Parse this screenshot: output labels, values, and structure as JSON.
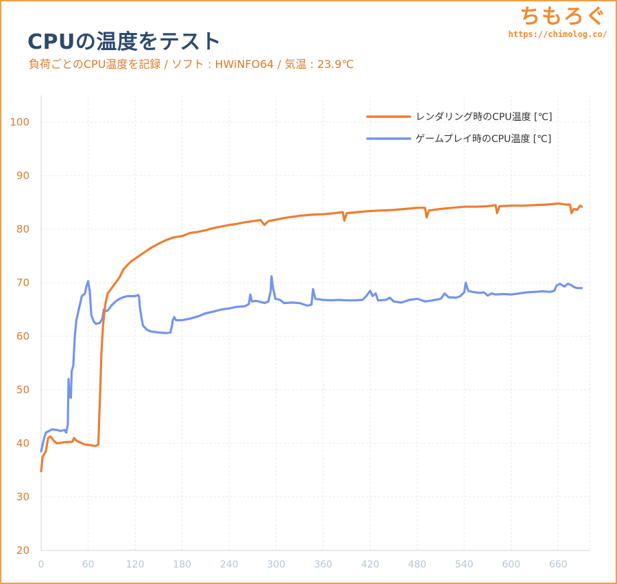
{
  "header": {
    "title": "CPUの温度をテスト",
    "subtitle": "負荷ごとのCPU温度を記録 / ソフト : HWiNFO64 / 気温 : 23.9℃"
  },
  "brand": {
    "name": "ちもろぐ",
    "url": "https://chimolog.co/"
  },
  "colors": {
    "accent": "#f0a040",
    "title": "#2d4a6b",
    "rendering": "#ed7d31",
    "gaming": "#7394ee"
  },
  "chart_data": {
    "type": "line",
    "title": "",
    "xlabel": "",
    "ylabel": "",
    "xlim": [
      0,
      700
    ],
    "ylim": [
      20,
      105
    ],
    "grid": true,
    "legend_position": "top-right",
    "x_ticks": [
      "0",
      "60",
      "120",
      "180",
      "240",
      "300",
      "360",
      "420",
      "480",
      "540",
      "600",
      "660"
    ],
    "y_ticks": [
      "20",
      "30",
      "40",
      "50",
      "60",
      "70",
      "80",
      "90",
      "100"
    ],
    "series": [
      {
        "name": "レンダリング時のCPU温度 [℃]",
        "color": "#ed7d31",
        "points": [
          [
            0,
            34.8
          ],
          [
            2,
            37.5
          ],
          [
            6,
            38.5
          ],
          [
            9,
            41.0
          ],
          [
            12,
            41.3
          ],
          [
            16,
            40.5
          ],
          [
            20,
            40.0
          ],
          [
            30,
            40.2
          ],
          [
            40,
            40.3
          ],
          [
            42,
            41.0
          ],
          [
            45,
            40.5
          ],
          [
            55,
            39.8
          ],
          [
            65,
            39.6
          ],
          [
            70,
            39.5
          ],
          [
            73,
            39.8
          ],
          [
            75,
            48.0
          ],
          [
            77,
            57.0
          ],
          [
            79,
            62.0
          ],
          [
            82,
            66.0
          ],
          [
            85,
            68.0
          ],
          [
            90,
            69.0
          ],
          [
            95,
            70.0
          ],
          [
            100,
            71.0
          ],
          [
            105,
            72.5
          ],
          [
            110,
            73.3
          ],
          [
            115,
            74.0
          ],
          [
            120,
            74.5
          ],
          [
            130,
            75.5
          ],
          [
            140,
            76.5
          ],
          [
            150,
            77.3
          ],
          [
            160,
            78.0
          ],
          [
            170,
            78.5
          ],
          [
            180,
            78.7
          ],
          [
            190,
            79.3
          ],
          [
            200,
            79.5
          ],
          [
            210,
            79.8
          ],
          [
            220,
            80.2
          ],
          [
            230,
            80.5
          ],
          [
            240,
            80.8
          ],
          [
            250,
            81.0
          ],
          [
            260,
            81.3
          ],
          [
            270,
            81.5
          ],
          [
            280,
            81.7
          ],
          [
            285,
            80.8
          ],
          [
            290,
            81.5
          ],
          [
            300,
            81.8
          ],
          [
            315,
            82.2
          ],
          [
            330,
            82.5
          ],
          [
            345,
            82.7
          ],
          [
            360,
            82.8
          ],
          [
            375,
            83.0
          ],
          [
            385,
            83.2
          ],
          [
            387,
            81.6
          ],
          [
            390,
            83.0
          ],
          [
            405,
            83.2
          ],
          [
            420,
            83.4
          ],
          [
            435,
            83.5
          ],
          [
            450,
            83.6
          ],
          [
            465,
            83.8
          ],
          [
            480,
            84.0
          ],
          [
            490,
            84.0
          ],
          [
            492,
            82.2
          ],
          [
            495,
            83.5
          ],
          [
            510,
            83.8
          ],
          [
            525,
            84.0
          ],
          [
            540,
            84.2
          ],
          [
            555,
            84.2
          ],
          [
            570,
            84.3
          ],
          [
            580,
            84.5
          ],
          [
            582,
            83.0
          ],
          [
            585,
            84.3
          ],
          [
            600,
            84.4
          ],
          [
            615,
            84.4
          ],
          [
            630,
            84.5
          ],
          [
            645,
            84.6
          ],
          [
            660,
            84.8
          ],
          [
            670,
            84.6
          ],
          [
            675,
            84.6
          ],
          [
            677,
            83.0
          ],
          [
            680,
            83.8
          ],
          [
            684,
            83.6
          ],
          [
            688,
            84.4
          ],
          [
            690,
            84.2
          ]
        ]
      },
      {
        "name": "ゲームプレイ時のCPU温度 [℃]",
        "color": "#7394ee",
        "points": [
          [
            0,
            38.5
          ],
          [
            3,
            40.5
          ],
          [
            6,
            42.0
          ],
          [
            10,
            42.3
          ],
          [
            14,
            42.6
          ],
          [
            20,
            42.5
          ],
          [
            25,
            42.3
          ],
          [
            30,
            42.5
          ],
          [
            32,
            42.0
          ],
          [
            34,
            43.5
          ],
          [
            35,
            52.0
          ],
          [
            36,
            49.0
          ],
          [
            38,
            48.5
          ],
          [
            39,
            53.5
          ],
          [
            41,
            54.5
          ],
          [
            43,
            60.0
          ],
          [
            45,
            63.0
          ],
          [
            48,
            65.0
          ],
          [
            52,
            67.5
          ],
          [
            56,
            68.0
          ],
          [
            58,
            69.5
          ],
          [
            60,
            70.3
          ],
          [
            62,
            68.5
          ],
          [
            64,
            64.0
          ],
          [
            67,
            62.8
          ],
          [
            70,
            62.3
          ],
          [
            75,
            62.5
          ],
          [
            78,
            63.2
          ],
          [
            80,
            65.0
          ],
          [
            82,
            64.7
          ],
          [
            85,
            64.8
          ],
          [
            90,
            65.8
          ],
          [
            95,
            66.5
          ],
          [
            100,
            67.0
          ],
          [
            105,
            67.3
          ],
          [
            110,
            67.5
          ],
          [
            120,
            67.5
          ],
          [
            124,
            67.7
          ],
          [
            125,
            67.3
          ],
          [
            126,
            65.5
          ],
          [
            128,
            63.5
          ],
          [
            130,
            62.0
          ],
          [
            135,
            61.2
          ],
          [
            140,
            60.9
          ],
          [
            150,
            60.7
          ],
          [
            160,
            60.6
          ],
          [
            165,
            60.7
          ],
          [
            167,
            62.0
          ],
          [
            168,
            63.0
          ],
          [
            170,
            63.6
          ],
          [
            172,
            63.0
          ],
          [
            180,
            63.0
          ],
          [
            190,
            63.3
          ],
          [
            200,
            63.7
          ],
          [
            210,
            64.3
          ],
          [
            220,
            64.6
          ],
          [
            230,
            65.0
          ],
          [
            240,
            65.2
          ],
          [
            250,
            65.5
          ],
          [
            260,
            65.6
          ],
          [
            265,
            66.0
          ],
          [
            267,
            67.8
          ],
          [
            269,
            66.5
          ],
          [
            275,
            66.6
          ],
          [
            285,
            66.2
          ],
          [
            290,
            66.5
          ],
          [
            293,
            68.5
          ],
          [
            294,
            71.2
          ],
          [
            296,
            69.0
          ],
          [
            299,
            67.0
          ],
          [
            305,
            66.8
          ],
          [
            310,
            66.2
          ],
          [
            320,
            66.3
          ],
          [
            330,
            66.2
          ],
          [
            340,
            65.7
          ],
          [
            345,
            65.9
          ],
          [
            347,
            68.8
          ],
          [
            350,
            67.0
          ],
          [
            360,
            66.8
          ],
          [
            370,
            66.7
          ],
          [
            380,
            66.8
          ],
          [
            390,
            66.7
          ],
          [
            400,
            66.7
          ],
          [
            410,
            66.8
          ],
          [
            415,
            67.5
          ],
          [
            420,
            68.5
          ],
          [
            423,
            67.5
          ],
          [
            427,
            68.0
          ],
          [
            430,
            66.7
          ],
          [
            440,
            66.8
          ],
          [
            445,
            67.2
          ],
          [
            450,
            66.5
          ],
          [
            460,
            66.3
          ],
          [
            470,
            66.8
          ],
          [
            480,
            67.0
          ],
          [
            490,
            66.5
          ],
          [
            500,
            66.7
          ],
          [
            510,
            67.0
          ],
          [
            515,
            68.0
          ],
          [
            520,
            67.3
          ],
          [
            530,
            67.2
          ],
          [
            535,
            67.5
          ],
          [
            540,
            68.2
          ],
          [
            542,
            70.0
          ],
          [
            545,
            68.5
          ],
          [
            550,
            68.3
          ],
          [
            560,
            68.1
          ],
          [
            565,
            68.2
          ],
          [
            570,
            67.6
          ],
          [
            575,
            68.0
          ],
          [
            580,
            67.8
          ],
          [
            590,
            67.9
          ],
          [
            600,
            67.8
          ],
          [
            610,
            68.0
          ],
          [
            620,
            68.2
          ],
          [
            630,
            68.3
          ],
          [
            640,
            68.4
          ],
          [
            650,
            68.3
          ],
          [
            655,
            68.5
          ],
          [
            658,
            69.5
          ],
          [
            662,
            69.8
          ],
          [
            668,
            69.3
          ],
          [
            672,
            69.8
          ],
          [
            676,
            69.6
          ],
          [
            680,
            69.2
          ],
          [
            684,
            69.0
          ],
          [
            690,
            69.0
          ]
        ]
      }
    ]
  }
}
